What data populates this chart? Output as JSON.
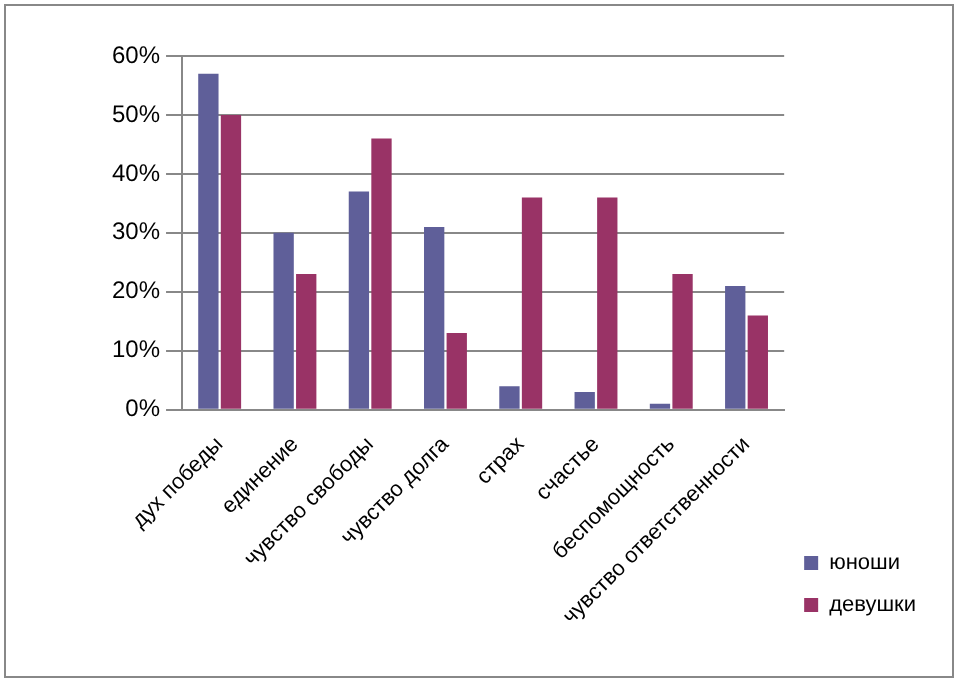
{
  "chart_data": {
    "type": "bar",
    "categories": [
      "дух победы",
      "единение",
      "чувство свободы",
      "чувство долга",
      "страх",
      "счастье",
      "беспомощность",
      "чувство ответственности"
    ],
    "series": [
      {
        "name": "юноши",
        "color": "#5f5f99",
        "values": [
          57,
          30,
          37,
          31,
          4,
          3,
          1,
          21
        ]
      },
      {
        "name": "девушки",
        "color": "#993366",
        "values": [
          50,
          23,
          46,
          13,
          36,
          36,
          23,
          16
        ]
      }
    ],
    "ylim": [
      0,
      60
    ],
    "yticks": [
      {
        "value": 0,
        "label": "0%"
      },
      {
        "value": 10,
        "label": "10%"
      },
      {
        "value": 20,
        "label": "20%"
      },
      {
        "value": 30,
        "label": "30%"
      },
      {
        "value": 40,
        "label": "40%"
      },
      {
        "value": 50,
        "label": "50%"
      },
      {
        "value": 60,
        "label": "60%"
      }
    ],
    "grid": "y",
    "legend": "right"
  }
}
